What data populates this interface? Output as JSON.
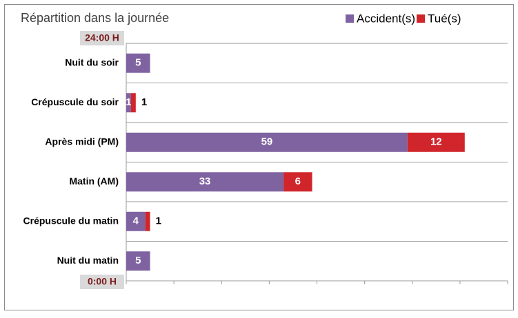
{
  "chart_data": {
    "type": "stacked-bar-horizontal",
    "title": "Répartition dans la journée",
    "categories": [
      "Nuit du soir",
      "Crépuscule du soir",
      "Après midi (PM)",
      "Matin (AM)",
      "Crépuscule du matin",
      "Nuit du matin"
    ],
    "series": [
      {
        "name": "Accident(s)",
        "color": "#7f63a1",
        "values": [
          5,
          1,
          59,
          33,
          4,
          5
        ]
      },
      {
        "name": "Tué(s)",
        "color": "#d0262b",
        "values": [
          0,
          1,
          12,
          6,
          1,
          0
        ]
      }
    ],
    "xlim": [
      0,
      80
    ],
    "xticks": [
      0,
      10,
      20,
      30,
      40,
      50,
      60,
      70,
      80
    ],
    "annotations": [
      "24:00 H",
      "0:00 H"
    ],
    "legend": "top-right"
  }
}
